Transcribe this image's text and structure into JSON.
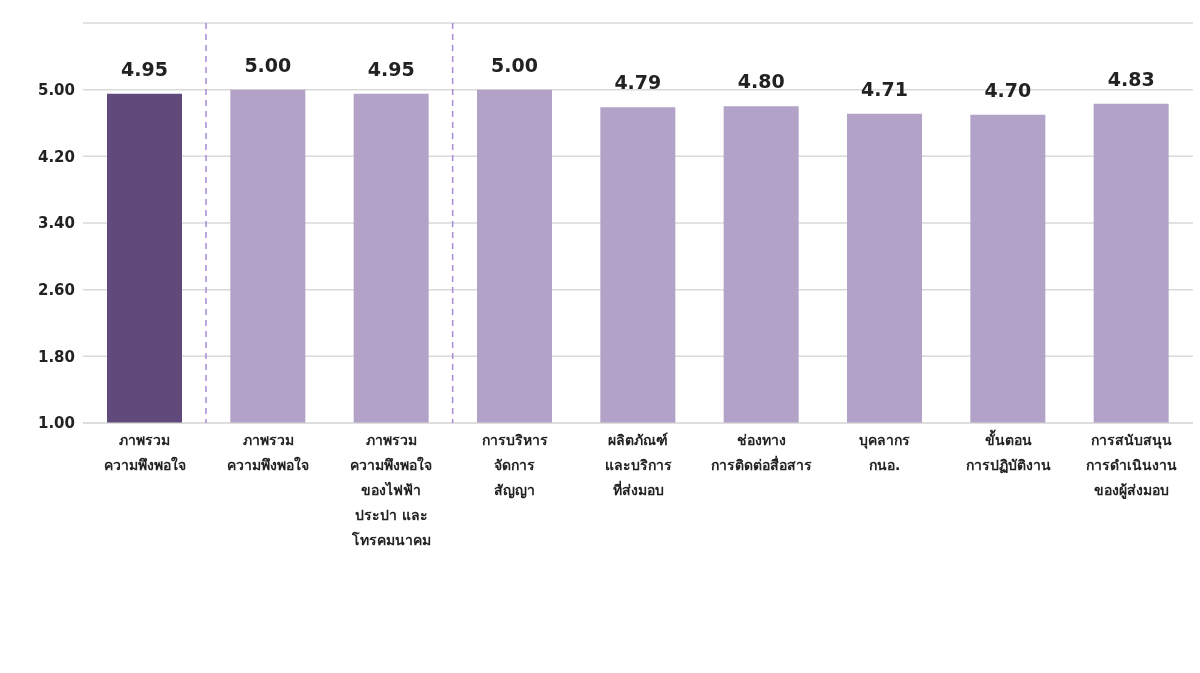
{
  "chart_data": {
    "type": "bar",
    "categories": [
      "ภาพรวม\nความพึงพอใจ",
      "ภาพรวม\nความพึงพอใจ",
      "ภาพรวม\nความพึงพอใจ\nของไฟฟ้า\nประปา และ\nโทรคมนาคม",
      "การบริหาร\nจัดการ\nสัญญา",
      "ผลิตภัณฑ์\nและบริการ\nที่ส่งมอบ",
      "ช่องทาง\nการติดต่อสื่อสาร",
      "บุคลากร\nกนอ.",
      "ขั้นตอน\nการปฏิบัติงาน",
      "การสนับสนุน\nการดำเนินงาน\nของผู้ส่งมอบ"
    ],
    "values": [
      4.95,
      5.0,
      4.95,
      5.0,
      4.79,
      4.8,
      4.71,
      4.7,
      4.83
    ],
    "value_labels": [
      "4.95",
      "5.00",
      "4.95",
      "5.00",
      "4.79",
      "4.80",
      "4.71",
      "4.70",
      "4.83"
    ],
    "colors": [
      "#604a7b",
      "#b3a2c7",
      "#b3a2c7",
      "#b3a2c7",
      "#b3a2c7",
      "#b3a2c7",
      "#b3a2c7",
      "#b3a2c7",
      "#b3a2c7"
    ],
    "ylim": [
      1,
      5.8
    ],
    "yticks": [
      {
        "value": 1,
        "label": "1.00"
      },
      {
        "value": 1.8,
        "label": "1.80"
      },
      {
        "value": 2.6,
        "label": "2.60"
      },
      {
        "value": 3.4,
        "label": "3.40"
      },
      {
        "value": 4.2,
        "label": "4.20"
      },
      {
        "value": 5,
        "label": "5.00"
      }
    ],
    "grid": "y"
  }
}
